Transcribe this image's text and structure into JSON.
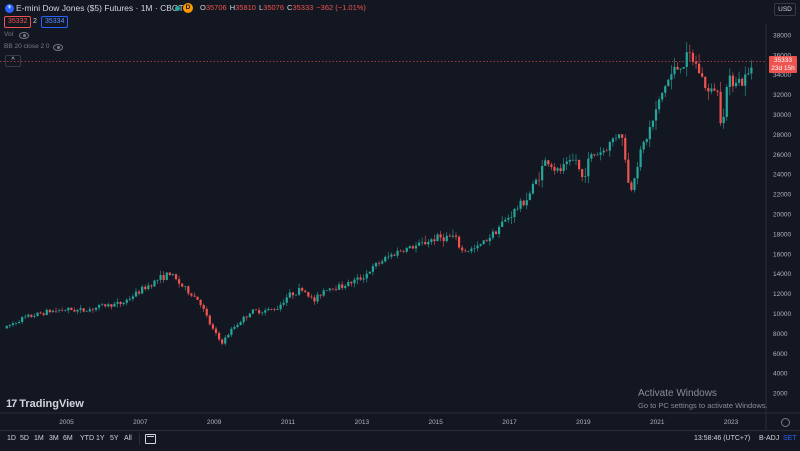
{
  "header": {
    "symbol_title": "E-mini Dow Jones ($5) Futures · 1M · CBOT",
    "symbol_icon": "☀",
    "badge": "D",
    "ohlc": [
      {
        "k": "O",
        "v": "35706"
      },
      {
        "k": "H",
        "v": "35810"
      },
      {
        "k": "L",
        "v": "35076"
      },
      {
        "k": "C",
        "v": "35333"
      },
      {
        "k": "",
        "v": "−362 (−1.01%)"
      }
    ],
    "sell_price": "35332",
    "spread": "2",
    "buy_price": "35334",
    "currency": "USD"
  },
  "indicators": {
    "vol_label": "Vol",
    "bb_label": "BB 20 close 2 0",
    "collapse_glyph": "^"
  },
  "last_price": {
    "value": "35333",
    "countdown": "23d 15h"
  },
  "watermark": {
    "logo_mark": "17",
    "logo_text": "TradingView",
    "activate_title": "Activate Windows",
    "activate_sub": "Go to PC settings to activate Windows."
  },
  "bottom_bar": {
    "timeframes": [
      "1D",
      "5D",
      "1M",
      "3M",
      "6M",
      "YTD",
      "1Y",
      "5Y",
      "All"
    ],
    "time": "13:58:46 (UTC+7)",
    "b_adj": "B-ADJ",
    "set": "SET"
  },
  "colors": {
    "up": "#26a69a",
    "down": "#ef5350",
    "background": "#131722",
    "axis_text": "#b2b5be"
  },
  "chart_data": {
    "type": "candlestick",
    "interval": "1M",
    "y_ticks": [
      2000,
      4000,
      6000,
      8000,
      10000,
      12000,
      14000,
      16000,
      18000,
      20000,
      22000,
      24000,
      26000,
      28000,
      30000,
      32000,
      34000,
      36000,
      38000
    ],
    "x_ticks": [
      "2005",
      "2007",
      "2009",
      "2011",
      "2013",
      "2015",
      "2017",
      "2019",
      "2021",
      "2023"
    ],
    "ylim": [
      0,
      39500
    ],
    "xlim": [
      2003.2,
      2024.0
    ],
    "grid": false,
    "anchors": [
      [
        2003.3,
        8500
      ],
      [
        2003.8,
        9500
      ],
      [
        2004.5,
        10200
      ],
      [
        2005.0,
        10400
      ],
      [
        2005.5,
        10300
      ],
      [
        2006.0,
        10800
      ],
      [
        2006.5,
        11000
      ],
      [
        2007.0,
        12300
      ],
      [
        2007.5,
        13500
      ],
      [
        2007.8,
        14000
      ],
      [
        2008.2,
        12500
      ],
      [
        2008.6,
        11300
      ],
      [
        2008.9,
        8800
      ],
      [
        2009.2,
        7000
      ],
      [
        2009.5,
        8500
      ],
      [
        2010.0,
        10200
      ],
      [
        2010.4,
        10300
      ],
      [
        2010.7,
        10500
      ],
      [
        2011.0,
        11800
      ],
      [
        2011.4,
        12500
      ],
      [
        2011.7,
        11200
      ],
      [
        2012.0,
        12500
      ],
      [
        2012.5,
        12800
      ],
      [
        2013.0,
        13600
      ],
      [
        2013.5,
        15200
      ],
      [
        2014.0,
        16300
      ],
      [
        2014.5,
        16800
      ],
      [
        2015.0,
        17600
      ],
      [
        2015.5,
        17700
      ],
      [
        2015.7,
        16300
      ],
      [
        2016.1,
        16500
      ],
      [
        2016.5,
        17900
      ],
      [
        2017.0,
        19800
      ],
      [
        2017.5,
        21700
      ],
      [
        2018.0,
        25500
      ],
      [
        2018.3,
        24200
      ],
      [
        2018.8,
        25500
      ],
      [
        2018.95,
        23500
      ],
      [
        2019.2,
        25800
      ],
      [
        2019.6,
        26500
      ],
      [
        2020.0,
        28500
      ],
      [
        2020.15,
        25400
      ],
      [
        2020.25,
        21900
      ],
      [
        2020.5,
        25700
      ],
      [
        2020.9,
        29500
      ],
      [
        2021.2,
        32900
      ],
      [
        2021.5,
        34600
      ],
      [
        2021.9,
        35800
      ],
      [
        2022.1,
        34700
      ],
      [
        2022.4,
        32000
      ],
      [
        2022.6,
        33000
      ],
      [
        2022.75,
        29000
      ],
      [
        2022.9,
        33100
      ],
      [
        2023.1,
        33800
      ],
      [
        2023.3,
        33200
      ],
      [
        2023.5,
        34200
      ],
      [
        2023.58,
        35333
      ]
    ],
    "last_price": 35333
  }
}
